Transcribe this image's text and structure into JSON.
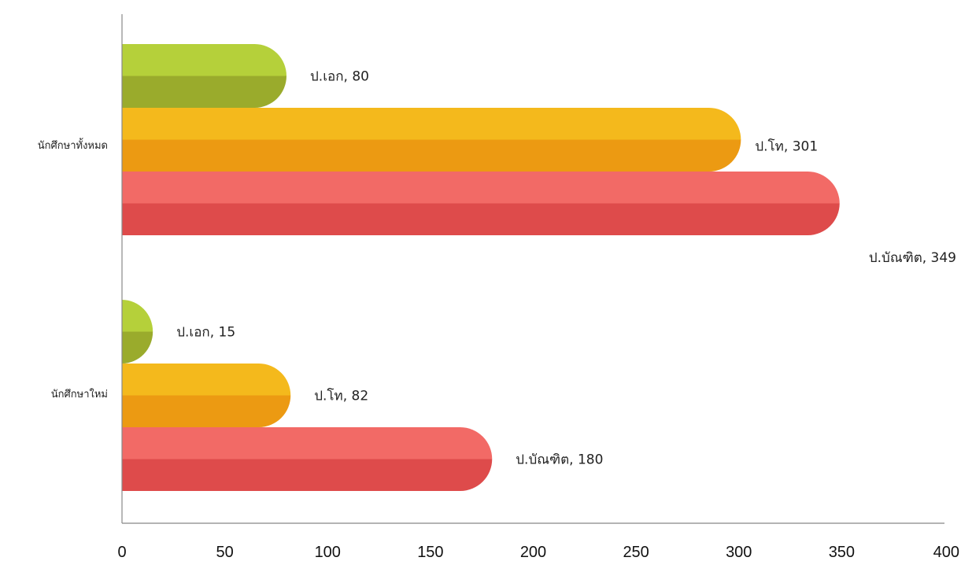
{
  "chart_data": {
    "type": "bar",
    "orientation": "horizontal",
    "categories": [
      "นักศึกษาทั้งหมด",
      "นักศึกษาใหม่"
    ],
    "series": [
      {
        "key": "phd",
        "values": [
          80,
          15
        ],
        "labels": [
          "ป.เอก, 80",
          "ป.เอก, 15"
        ],
        "color_top": "#b5d03a",
        "color_bottom": "#9aab2c"
      },
      {
        "key": "master",
        "values": [
          301,
          82
        ],
        "labels": [
          "ป.โท, 301",
          "ป.โท, 82"
        ],
        "color_top": "#f4b91c",
        "color_bottom": "#ec9a12"
      },
      {
        "key": "grad_diploma",
        "values": [
          349,
          180
        ],
        "labels": [
          "ป.บัณฑิต, 349",
          "ป.บัณฑิต, 180"
        ],
        "color_top": "#f26a66",
        "color_bottom": "#de4b4b"
      }
    ],
    "xlim": [
      0,
      400
    ],
    "xticks": [
      "0",
      "50",
      "100",
      "150",
      "200",
      "250",
      "300",
      "350",
      "400"
    ],
    "grid": false,
    "legend": false,
    "axis_color": "#888888"
  }
}
